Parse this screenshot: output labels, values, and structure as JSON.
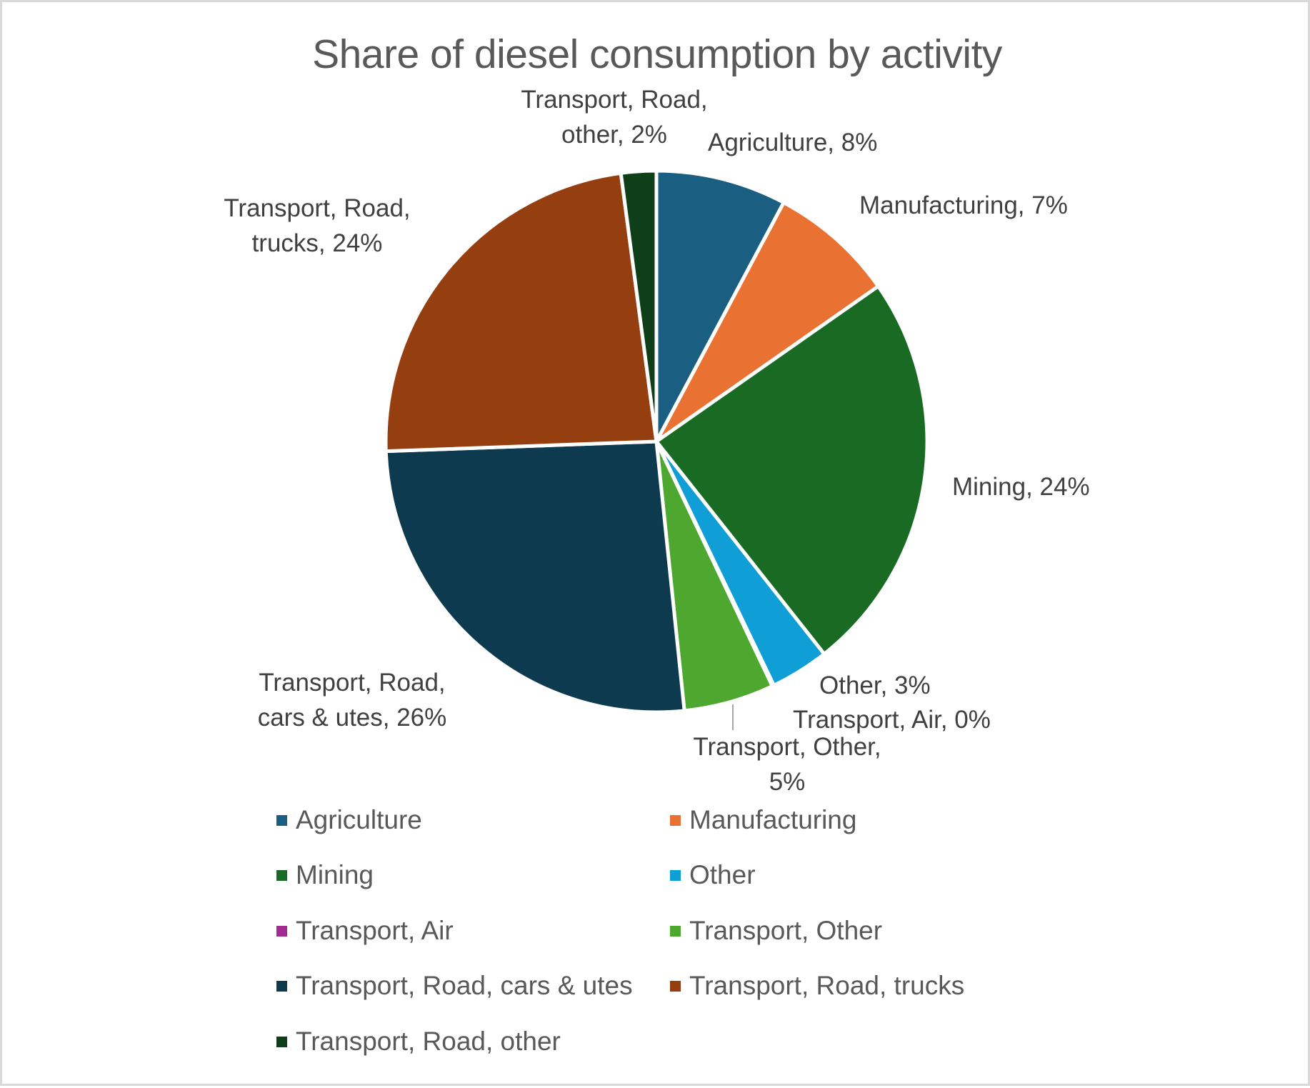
{
  "chart": {
    "title": "Share of diesel consumption by activity"
  },
  "labels": {
    "agriculture": "Agriculture, 8%",
    "manufacturing": "Manufacturing, 7%",
    "mining": "Mining, 24%",
    "other": "Other, 3%",
    "transport_air": "Transport, Air, 0%",
    "transport_other_l1": "Transport, Other,",
    "transport_other_l2": "5%",
    "cars_l1": "Transport, Road,",
    "cars_l2": "cars & utes, 26%",
    "trucks_l1": "Transport, Road,",
    "trucks_l2": "trucks, 24%",
    "road_other_l1": "Transport, Road,",
    "road_other_l2": "other, 2%"
  },
  "legend": [
    {
      "label": "Agriculture",
      "color": "#1A5E82"
    },
    {
      "label": "Manufacturing",
      "color": "#E97132"
    },
    {
      "label": "Mining",
      "color": "#196B24"
    },
    {
      "label": "Other",
      "color": "#0F9ED5"
    },
    {
      "label": "Transport, Air",
      "color": "#A02B93"
    },
    {
      "label": "Transport, Other",
      "color": "#4EA72E"
    },
    {
      "label": "Transport, Road, cars & utes",
      "color": "#0E3A4F"
    },
    {
      "label": "Transport, Road, trucks",
      "color": "#953F10"
    },
    {
      "label": "Transport, Road, other",
      "color": "#0F3F18"
    }
  ],
  "chart_data": {
    "type": "pie",
    "title": "Share of diesel consumption by activity",
    "categories": [
      "Agriculture",
      "Manufacturing",
      "Mining",
      "Other",
      "Transport, Air",
      "Transport, Other",
      "Transport, Road, cars & utes",
      "Transport, Road, trucks",
      "Transport, Road, other"
    ],
    "values": [
      7.8,
      7.5,
      24.1,
      3.5,
      0.1,
      5.4,
      26.1,
      23.5,
      2.1
    ],
    "display_labels": [
      "8%",
      "7%",
      "24%",
      "3%",
      "0%",
      "5%",
      "26%",
      "24%",
      "2%"
    ],
    "colors": [
      "#1A5E82",
      "#E97132",
      "#196B24",
      "#0F9ED5",
      "#A02B93",
      "#4EA72E",
      "#0E3A4F",
      "#953F10",
      "#0F3F18"
    ],
    "start_angle_deg": 0,
    "direction": "clockwise",
    "legend_position": "bottom",
    "xlabel": "",
    "ylabel": ""
  }
}
